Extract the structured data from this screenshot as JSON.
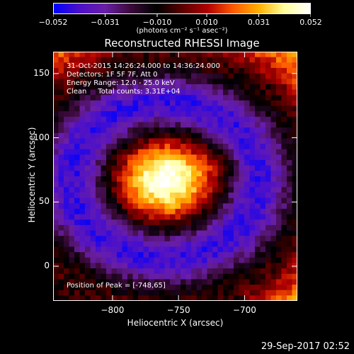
{
  "colorbar": {
    "ticks": [
      "-0.052",
      "-0.031",
      "-0.010",
      "0.010",
      "0.031",
      "0.052"
    ],
    "tick_values": [
      -0.052,
      -0.031,
      -0.01,
      0.01,
      0.031,
      0.052
    ],
    "units": "(photons cm⁻² s⁻¹ asec⁻²)",
    "colors": [
      "#0000ff",
      "#4d10c9",
      "#6a1fa6",
      "#3b0a3a",
      "#000000",
      "#5a0000",
      "#b00000",
      "#ff5a00",
      "#ffb000",
      "#ffffa0",
      "#ffffff"
    ]
  },
  "chart_data": {
    "type": "heatmap",
    "title": "Reconstructed RHESSI Image",
    "xlabel": "Heliocentric X (arcsec)",
    "ylabel": "Heliocentric Y (arcsec)",
    "xlim": [
      -845,
      -660
    ],
    "ylim": [
      -27,
      167
    ],
    "xticks": [
      -800,
      -750,
      -700
    ],
    "xtick_labels": [
      "−800",
      "−750",
      "−700"
    ],
    "yticks": [
      0,
      50,
      100,
      150
    ],
    "ytick_labels": [
      "0",
      "50",
      "100",
      "150"
    ],
    "value_range": [
      -0.052,
      0.052
    ],
    "peak": [
      -748,
      65
    ],
    "annotations": {
      "time": "31-Oct-2015 14:26:24.000 to 14:36:24.000",
      "detectors": "Detectors: 1F 5F 7F, Att 0",
      "energy": "Energy Range: 12.0 - 25.0 keV",
      "method": "Clean",
      "counts": "Total counts: 3.31E+04",
      "peak_text": "Position of Peak = [-748,65]"
    }
  },
  "footer": {
    "timestamp": "29-Sep-2017 02:52"
  }
}
